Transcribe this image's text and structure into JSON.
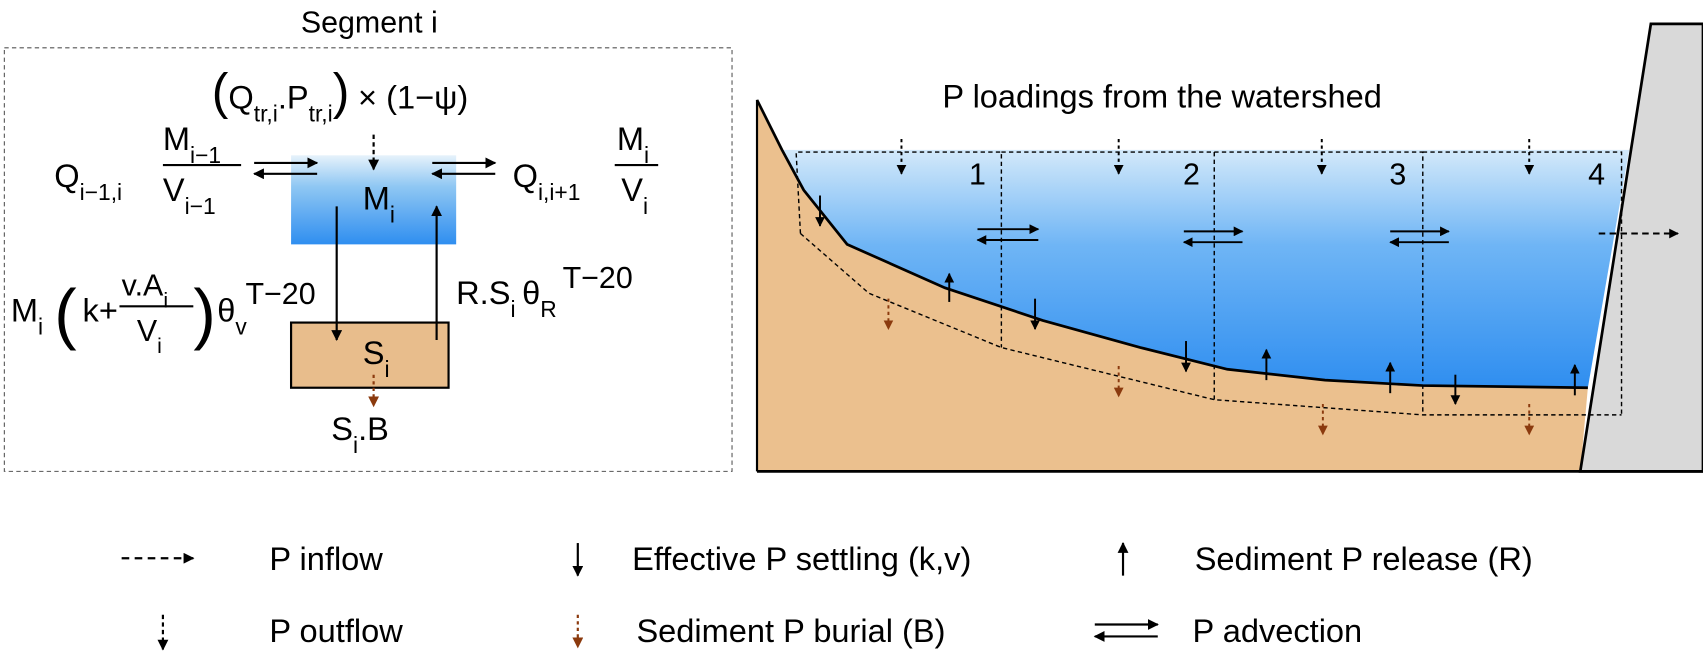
{
  "segment": {
    "title": "Segment i",
    "inflow": {
      "open": "(",
      "q": "Q",
      "q_sub": "tr,i",
      "p": ".P",
      "p_sub": "tr,i",
      "close": ")",
      "factor": "× (1−ψ)"
    },
    "upstream": {
      "q": "Q",
      "q_sub": "i−1,i",
      "num": "M",
      "num_sub": "i−1",
      "den": "V",
      "den_sub": "i−1"
    },
    "downstream": {
      "q": "Q",
      "q_sub": "i,i+1",
      "num": "M",
      "num_sub": "i",
      "den": "V",
      "den_sub": "i"
    },
    "water": {
      "m": "M",
      "m_sub": "i"
    },
    "sediment": {
      "s": "S",
      "s_sub": "i"
    },
    "settling": {
      "m": "M",
      "m_sub": "i",
      "open": "(",
      "k": "k+",
      "num": "v.A",
      "num_sub": "i",
      "den": "V",
      "den_sub": "i",
      "close": ")",
      "theta": "θ",
      "theta_sub": "v",
      "theta_sup": "T−20"
    },
    "release": {
      "r": "R.S",
      "r_sub": "i",
      "theta": "θ",
      "theta_sub": "R",
      "theta_sup": "T−20"
    },
    "burial": {
      "s": "S",
      "s_sub": "i",
      "b": ".B"
    }
  },
  "reservoir": {
    "title": "P loadings from the watershed",
    "segments": [
      "1",
      "2",
      "3",
      "4"
    ]
  },
  "legend": [
    "P inflow",
    "Effective P settling (k,v)",
    "Sediment P release (R)",
    "P outflow",
    "Sediment P burial (B)",
    "P advection"
  ]
}
